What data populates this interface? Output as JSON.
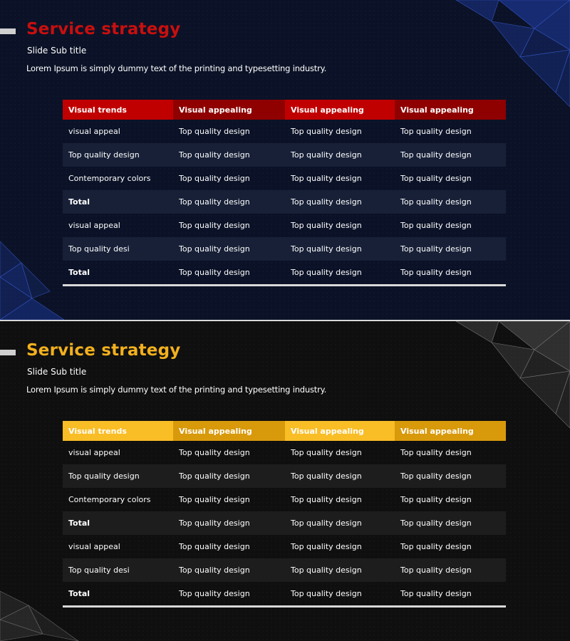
{
  "slides": [
    {
      "theme": "red",
      "accent_color": "#c80f0f",
      "title": "Service strategy",
      "subtitle": "Slide Sub title",
      "body": "Lorem Ipsum is simply dummy text of the printing and typesetting industry.",
      "table": {
        "headers": [
          "Visual trends",
          "Visual appealing",
          "Visual appealing",
          "Visual appealing"
        ],
        "rows": [
          [
            "visual appeal",
            "Top quality design",
            "Top quality design",
            "Top quality design"
          ],
          [
            "Top quality design",
            "Top quality design",
            "Top quality design",
            "Top quality design"
          ],
          [
            "Contemporary colors",
            "Top quality design",
            "Top quality design",
            "Top quality design"
          ],
          [
            "Total",
            "Top quality design",
            "Top quality design",
            "Top quality design"
          ],
          [
            "visual appeal",
            "Top quality design",
            "Top quality design",
            "Top quality design"
          ],
          [
            "Top quality desi",
            "Top quality design",
            "Top quality design",
            "Top quality design"
          ],
          [
            "Total",
            "Top quality design",
            "Top quality design",
            "Top quality design"
          ]
        ]
      }
    },
    {
      "theme": "yellow",
      "accent_color": "#f2b01e",
      "title": "Service strategy",
      "subtitle": "Slide Sub title",
      "body": "Lorem Ipsum is simply dummy text of the printing and typesetting industry.",
      "table": {
        "headers": [
          "Visual trends",
          "Visual appealing",
          "Visual appealing",
          "Visual appealing"
        ],
        "rows": [
          [
            "visual appeal",
            "Top quality design",
            "Top quality design",
            "Top quality design"
          ],
          [
            "Top quality design",
            "Top quality design",
            "Top quality design",
            "Top quality design"
          ],
          [
            "Contemporary colors",
            "Top quality design",
            "Top quality design",
            "Top quality design"
          ],
          [
            "Total",
            "Top quality design",
            "Top quality design",
            "Top quality design"
          ],
          [
            "visual appeal",
            "Top quality design",
            "Top quality design",
            "Top quality design"
          ],
          [
            "Top quality desi",
            "Top quality design",
            "Top quality design",
            "Top quality design"
          ],
          [
            "Total",
            "Top quality design",
            "Top quality design",
            "Top quality design"
          ]
        ]
      }
    }
  ]
}
